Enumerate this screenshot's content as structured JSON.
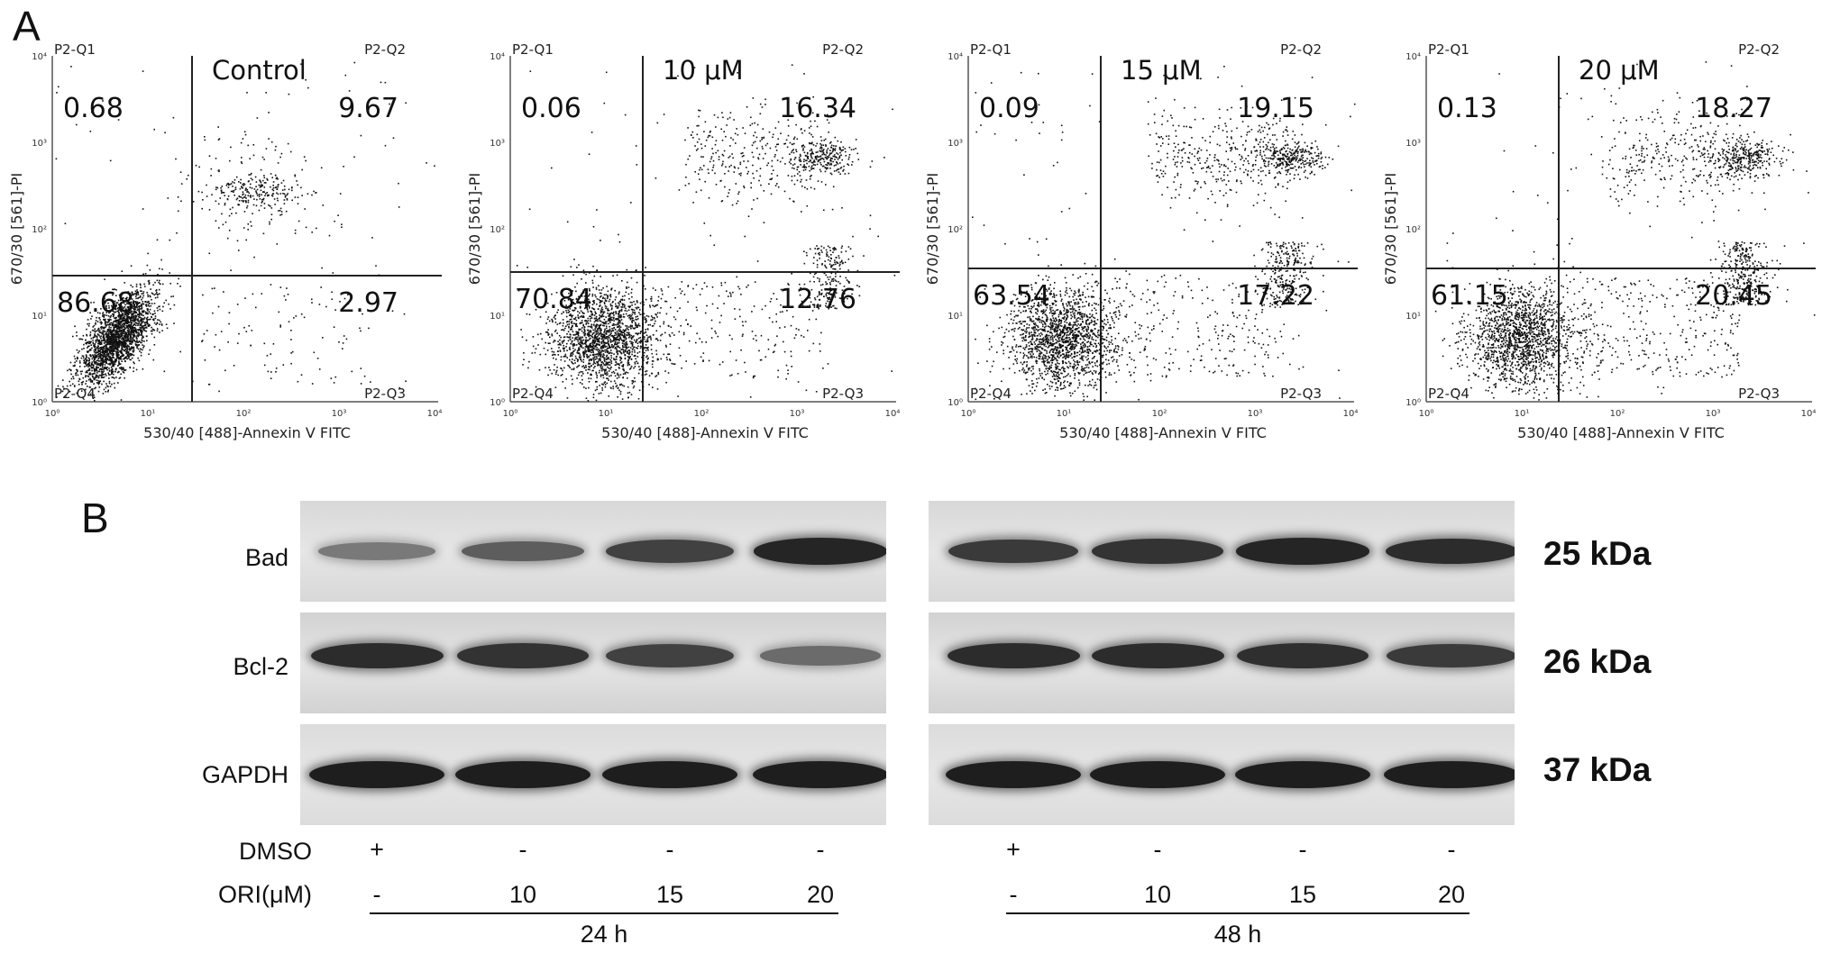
{
  "panel_a": {
    "letter": "A",
    "x_axis_label": "530/40 [488]-Annexin V FITC",
    "y_axis_label": "670/30 [561]-PI",
    "x_ticks": [
      "10⁰",
      "10¹",
      "10²",
      "10³",
      "10⁴"
    ],
    "y_ticks": [
      "10⁰",
      "10¹",
      "10²",
      "10³",
      "10⁴"
    ],
    "quadrant_labels": {
      "q1": "P2-Q1",
      "q2": "P2-Q2",
      "q3": "P2-Q3",
      "q4": "P2-Q4"
    },
    "plots": [
      {
        "condition": "Control",
        "q1": "0.68",
        "q2": "9.67",
        "q3": "2.97",
        "q4": "86.68"
      },
      {
        "condition": "10 μM",
        "q1": "0.06",
        "q2": "16.34",
        "q3": "12.76",
        "q4": "70.84"
      },
      {
        "condition": "15 μM",
        "q1": "0.09",
        "q2": "19.15",
        "q3": "17.22",
        "q4": "63.54"
      },
      {
        "condition": "20 μM",
        "q1": "0.13",
        "q2": "18.27",
        "q3": "20.45",
        "q4": "61.15"
      }
    ]
  },
  "panel_b": {
    "letter": "B",
    "proteins": [
      {
        "name": "Bad",
        "kda": "25 kDa"
      },
      {
        "name": "Bcl-2",
        "kda": "26 kDa"
      },
      {
        "name": "GAPDH",
        "kda": "37 kDa"
      }
    ],
    "band_intensity_24h": {
      "Bad": [
        0.35,
        0.55,
        0.75,
        0.95
      ],
      "Bcl-2": [
        0.9,
        0.85,
        0.75,
        0.45
      ],
      "GAPDH": [
        1,
        1,
        1,
        1
      ]
    },
    "band_intensity_48h": {
      "Bad": [
        0.8,
        0.85,
        0.95,
        0.9
      ],
      "Bcl-2": [
        0.9,
        0.9,
        0.88,
        0.8
      ],
      "GAPDH": [
        1,
        1,
        1,
        1
      ]
    },
    "row_labels": {
      "dmso": "DMSO",
      "ori": "ORI(μM)"
    },
    "groups": [
      {
        "time": "24 h",
        "dmso": [
          "+",
          "-",
          "-",
          "-"
        ],
        "ori": [
          "-",
          "10",
          "15",
          "20"
        ]
      },
      {
        "time": "48 h",
        "dmso": [
          "+",
          "-",
          "-",
          "-"
        ],
        "ori": [
          "-",
          "10",
          "15",
          "20"
        ]
      }
    ]
  }
}
